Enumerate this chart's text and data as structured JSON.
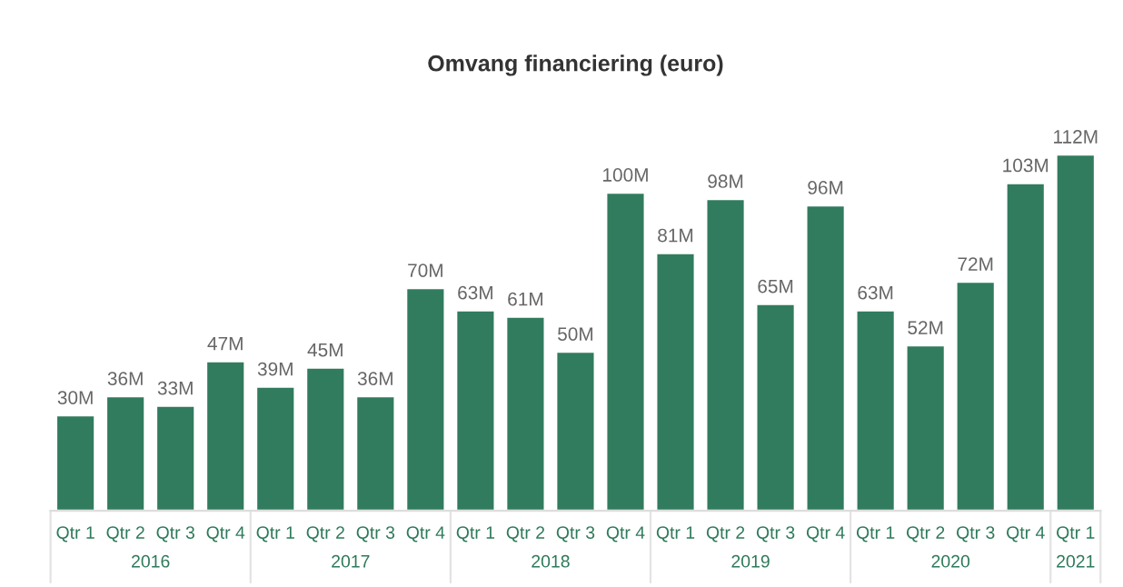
{
  "chart_data": {
    "type": "bar",
    "title": "Omvang financiering (euro)",
    "categories": [
      "Qtr 1",
      "Qtr 2",
      "Qtr 3",
      "Qtr 4",
      "Qtr 1",
      "Qtr 2",
      "Qtr 3",
      "Qtr 4",
      "Qtr 1",
      "Qtr 2",
      "Qtr 3",
      "Qtr 4",
      "Qtr 1",
      "Qtr 2",
      "Qtr 3",
      "Qtr 4",
      "Qtr 1",
      "Qtr 2",
      "Qtr 3",
      "Qtr 4",
      "Qtr 1"
    ],
    "values": [
      30,
      36,
      33,
      47,
      39,
      45,
      36,
      70,
      63,
      61,
      50,
      100,
      81,
      98,
      65,
      96,
      63,
      52,
      72,
      103,
      112
    ],
    "value_labels": [
      "30M",
      "36M",
      "33M",
      "47M",
      "39M",
      "45M",
      "36M",
      "70M",
      "63M",
      "61M",
      "50M",
      "100M",
      "81M",
      "98M",
      "65M",
      "96M",
      "63M",
      "52M",
      "72M",
      "103M",
      "112M"
    ],
    "color": "#317c5e",
    "annotations": [
      "2016",
      "2017",
      "2018",
      "2019",
      "2020",
      "2021"
    ]
  }
}
